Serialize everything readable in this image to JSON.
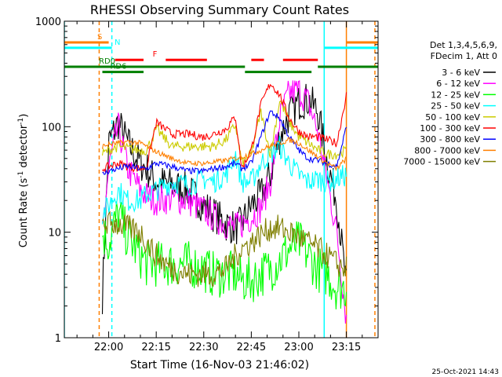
{
  "chart_data": {
    "type": "line",
    "title": "RHESSI Observing Summary Count Rates",
    "xlabel": "Start Time (16-Nov-03 21:46:02)",
    "ylabel": "Count Rate (s^-1 detector^-1)",
    "ylabel_parts": {
      "main": "Count Rate (s",
      "exp1": "-1",
      "mid": " detector",
      "exp2": "-1",
      "end": ")"
    },
    "yscale": "log",
    "ylim": [
      1,
      1000
    ],
    "xlim": [
      "21:46",
      "23:25"
    ],
    "x_ticks": [
      "22:00",
      "22:15",
      "22:30",
      "22:45",
      "23:00",
      "23:15"
    ],
    "y_ticks": [
      "1",
      "10",
      "100",
      "1000"
    ],
    "timestamp": "25-Oct-2021 14:43",
    "legend": {
      "header": [
        "Det 1,3,4,5,6,9,",
        "FDecim 1, Att 0"
      ],
      "placement": "right"
    },
    "flags": [
      {
        "label": "S",
        "color": "#ff7f00",
        "level": 630,
        "segments": [
          [
            "21:46",
            "22:00"
          ],
          [
            "23:15",
            "23:25"
          ]
        ]
      },
      {
        "label": "N",
        "color": "#00ffff",
        "level": 560,
        "segments": [
          [
            "21:46",
            "22:01"
          ],
          [
            "23:08",
            "23:25"
          ]
        ]
      },
      {
        "label": "F",
        "color": "#ff0000",
        "level": 430,
        "segments": [
          [
            "22:02",
            "22:11"
          ],
          [
            "22:18",
            "22:31"
          ],
          [
            "22:45",
            "22:49"
          ],
          [
            "22:55",
            "23:06"
          ]
        ]
      },
      {
        "label": "RD0",
        "color": "#007f00",
        "level": 370,
        "segments": [
          [
            "21:46",
            "22:43"
          ],
          [
            "23:06",
            "23:25"
          ]
        ]
      },
      {
        "label": "RD6",
        "color": "#007f00",
        "level": 330,
        "segments": [
          [
            "21:58",
            "22:11"
          ],
          [
            "22:43",
            "23:04"
          ]
        ]
      }
    ],
    "vlines": [
      {
        "time": "21:46",
        "color": "#00ffff",
        "style": "solid"
      },
      {
        "time": "21:57",
        "color": "#ff7f00",
        "style": "dashed"
      },
      {
        "time": "22:01",
        "color": "#00ffff",
        "style": "dashed"
      },
      {
        "time": "23:08",
        "color": "#00ffff",
        "style": "solid"
      },
      {
        "time": "23:15",
        "color": "#ff7f00",
        "style": "solid"
      },
      {
        "time": "23:24",
        "color": "#ff7f00",
        "style": "dashed"
      }
    ],
    "x_times": [
      "21:58",
      "22:00",
      "22:03",
      "22:06",
      "22:10",
      "22:12",
      "22:15",
      "22:20",
      "22:25",
      "22:30",
      "22:33",
      "22:37",
      "22:40",
      "22:42",
      "22:45",
      "22:48",
      "22:51",
      "22:54",
      "22:57",
      "23:00",
      "23:03",
      "23:06",
      "23:09",
      "23:12",
      "23:15"
    ],
    "series": [
      {
        "name": "3 - 6 keV",
        "color": "#000000",
        "values": [
          2.5,
          70,
          110,
          70,
          45,
          40,
          30,
          28,
          25,
          18,
          15,
          12,
          11,
          12,
          18,
          22,
          35,
          80,
          130,
          170,
          180,
          140,
          45,
          20,
          3
        ]
      },
      {
        "name": "6 - 12 keV",
        "color": "#ff00ff",
        "values": [
          10,
          40,
          100,
          40,
          25,
          22,
          20,
          21,
          20,
          16,
          14,
          12,
          11,
          12,
          14,
          17,
          30,
          120,
          210,
          220,
          170,
          90,
          30,
          10,
          1.5
        ]
      },
      {
        "name": "12 - 25 keV",
        "color": "#00ff00",
        "values": [
          10,
          8,
          15,
          9,
          6,
          5,
          5,
          5,
          5,
          4.5,
          4,
          4,
          4,
          3.5,
          3.5,
          4,
          4.5,
          5.5,
          7,
          8,
          6,
          4.5,
          4,
          3,
          3
        ]
      },
      {
        "name": "25 - 50 keV",
        "color": "#00ffff",
        "values": [
          15,
          18,
          25,
          20,
          20,
          23,
          25,
          30,
          28,
          32,
          30,
          35,
          55,
          30,
          30,
          45,
          55,
          65,
          45,
          35,
          30,
          32,
          30,
          32,
          35
        ]
      },
      {
        "name": "50 - 100 keV",
        "color": "#cccc00",
        "values": [
          55,
          60,
          65,
          62,
          60,
          60,
          95,
          65,
          65,
          65,
          65,
          75,
          105,
          45,
          55,
          140,
          55,
          180,
          110,
          80,
          70,
          60,
          55,
          55,
          60
        ]
      },
      {
        "name": "100 - 300 keV",
        "color": "#ff0000",
        "values": [
          40,
          42,
          45,
          42,
          40,
          42,
          110,
          85,
          85,
          80,
          85,
          95,
          125,
          40,
          60,
          160,
          260,
          200,
          120,
          90,
          80,
          80,
          75,
          70,
          200
        ]
      },
      {
        "name": "300 - 800 keV",
        "color": "#0000ff",
        "values": [
          35,
          38,
          40,
          42,
          40,
          40,
          45,
          42,
          38,
          38,
          40,
          42,
          45,
          40,
          45,
          80,
          140,
          120,
          80,
          60,
          50,
          48,
          45,
          42,
          100
        ]
      },
      {
        "name": "800 - 7000 keV",
        "color": "#ff7f00",
        "values": [
          65,
          68,
          70,
          72,
          70,
          65,
          58,
          50,
          45,
          45,
          46,
          48,
          50,
          52,
          55,
          60,
          66,
          70,
          75,
          70,
          60,
          52,
          45,
          40,
          50
        ]
      },
      {
        "name": "7000 - 15000 keV",
        "color": "#7f7f00",
        "values": [
          12,
          12,
          12,
          11,
          10,
          8,
          6,
          4.5,
          4,
          4,
          4,
          4.5,
          6,
          7,
          8,
          9.5,
          11,
          11,
          10,
          9,
          8,
          7,
          6,
          5,
          4.5
        ]
      }
    ]
  }
}
